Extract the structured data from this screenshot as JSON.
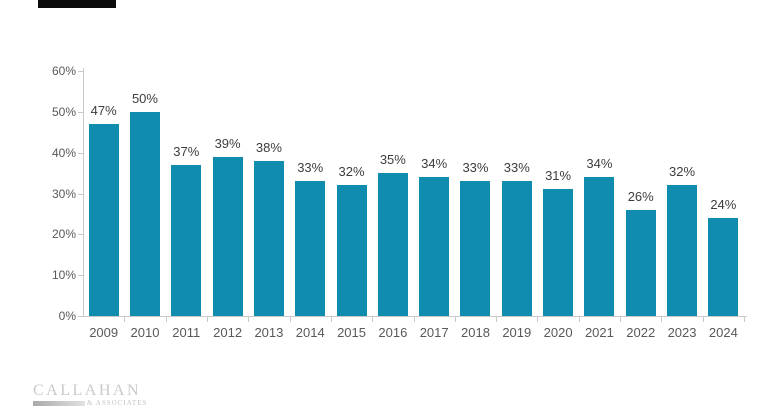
{
  "page": {
    "background_color": "#ffffff"
  },
  "header": {
    "redaction_color": "#0b0b0b"
  },
  "chart_data": {
    "type": "bar",
    "title": "",
    "xlabel": "",
    "ylabel": "",
    "categories": [
      "2009",
      "2010",
      "2011",
      "2012",
      "2013",
      "2014",
      "2015",
      "2016",
      "2017",
      "2018",
      "2019",
      "2020",
      "2021",
      "2022",
      "2023",
      "2024"
    ],
    "values": [
      47,
      50,
      37,
      39,
      38,
      33,
      32,
      35,
      34,
      33,
      33,
      31,
      34,
      26,
      32,
      24
    ],
    "value_labels": [
      "47%",
      "50%",
      "37%",
      "39%",
      "38%",
      "33%",
      "32%",
      "35%",
      "34%",
      "33%",
      "33%",
      "31%",
      "34%",
      "26%",
      "32%",
      "24%"
    ],
    "ylim": [
      0,
      60
    ],
    "y_ticks": [
      "0%",
      "10%",
      "20%",
      "30%",
      "40%",
      "50%",
      "60%"
    ],
    "y_tick_step": 10,
    "grid": false,
    "legend": "none",
    "bar_color": "#108caf",
    "value_label_color": "#3d3d3d",
    "tick_label_color": "#595959",
    "axis_color": "#c9c9c9"
  },
  "footer": {
    "logo_text": "CALLAHAN",
    "logo_subtext": "& ASSOCIATES",
    "logo_color": "#c9c9c9"
  }
}
